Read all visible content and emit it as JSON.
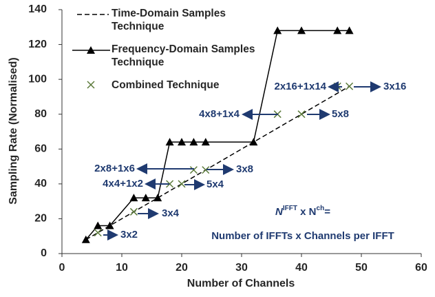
{
  "chart_data": {
    "type": "line",
    "xlabel": "Number of Channels",
    "ylabel": "Sampling Rate (Normalised)",
    "xlim": [
      0,
      60
    ],
    "xticks": [
      0,
      10,
      20,
      30,
      40,
      50,
      60
    ],
    "ylim": [
      0,
      140
    ],
    "yticks": [
      0,
      20,
      40,
      60,
      80,
      100,
      120,
      140
    ],
    "grid": false,
    "legend": "upper left",
    "series": [
      {
        "name": "Time-Domain Samples Technique",
        "color": "#000000",
        "style": "dashed",
        "x": [
          4,
          48
        ],
        "values": [
          8,
          96
        ]
      },
      {
        "name": "Frequency-Domain Samples Technique",
        "color": "#000000",
        "style": "solid-triangle",
        "x": [
          4,
          6,
          8,
          12,
          14,
          16,
          18,
          20,
          22,
          24,
          32,
          36,
          40,
          46,
          48
        ],
        "values": [
          8,
          16,
          16,
          32,
          32,
          32,
          64,
          64,
          64,
          64,
          64,
          128,
          128,
          128,
          128
        ]
      },
      {
        "name": "Combined Technique",
        "color": "#5b7a3a",
        "style": "x-marker",
        "x": [
          6,
          12,
          18,
          20,
          22,
          24,
          36,
          40,
          46,
          48
        ],
        "values": [
          12,
          24,
          40,
          40,
          48,
          48,
          80,
          80,
          96,
          96
        ]
      }
    ],
    "annotations": [
      "3x2",
      "3x4",
      "4x4+1x2",
      "5x4",
      "2x8+1x6",
      "3x8",
      "4x8+1x4",
      "5x8",
      "2x16+1x14",
      "3x16"
    ],
    "formula": {
      "n1": "N",
      "sup1": "IFFT",
      "mid": " x N",
      "sup2": "ch",
      "end": "=",
      "line2": "Number of IFFTs x Channels per IFFT"
    }
  }
}
